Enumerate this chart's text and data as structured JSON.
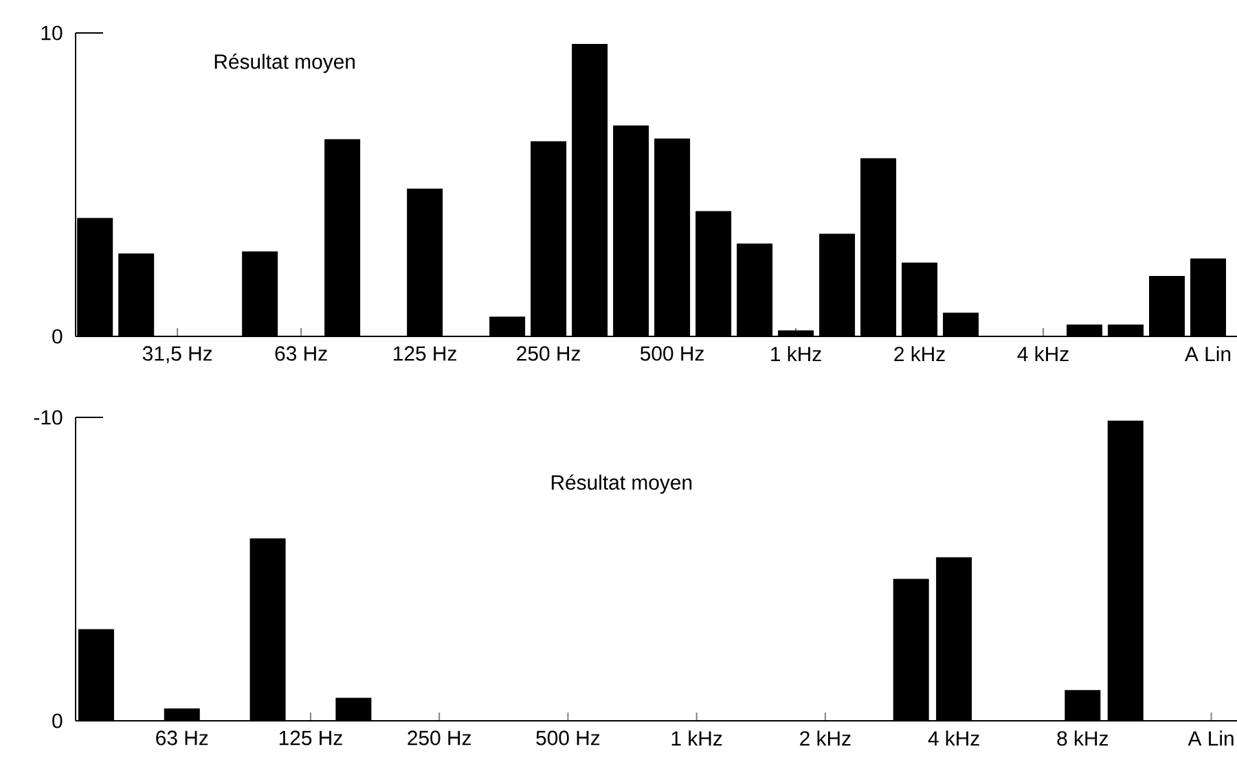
{
  "chart_data": [
    {
      "type": "bar",
      "categories": [
        null,
        null,
        "31,5 Hz",
        null,
        null,
        "63 Hz",
        null,
        null,
        "125 Hz",
        null,
        null,
        "250 Hz",
        null,
        null,
        "500 Hz",
        null,
        null,
        "1 kHz",
        null,
        null,
        "2 kHz",
        null,
        null,
        "4 kHz",
        null,
        null,
        null,
        "A Lin"
      ],
      "values": [
        3.9,
        2.73,
        0,
        0,
        2.8,
        0,
        6.5,
        0,
        4.87,
        0,
        0.65,
        6.43,
        9.64,
        6.95,
        6.52,
        4.13,
        3.06,
        0.2,
        3.38,
        5.87,
        2.43,
        0.78,
        0,
        0,
        0.39,
        0.39,
        1.99,
        2.57
      ],
      "color": "#000000",
      "ylim": [
        0,
        10
      ],
      "yticks": [
        0,
        10
      ],
      "annotations": [
        "Résultat moyen"
      ]
    },
    {
      "type": "bar",
      "categories": [
        null,
        null,
        "63 Hz",
        null,
        null,
        "125 Hz",
        null,
        null,
        "250 Hz",
        null,
        null,
        "500 Hz",
        null,
        null,
        "1 kHz",
        null,
        null,
        "2 kHz",
        null,
        null,
        "4 kHz",
        null,
        null,
        "8 kHz",
        null,
        null,
        "A Lin"
      ],
      "values": [
        -3.02,
        0,
        -0.41,
        0,
        -6.01,
        0,
        -0.76,
        0,
        0,
        0,
        0,
        0,
        0,
        0,
        0,
        0,
        0,
        0,
        0,
        -4.68,
        -5.39,
        0,
        0,
        -1.01,
        -9.89,
        0,
        0
      ],
      "color": "#000000",
      "ylim": [
        0,
        -10
      ],
      "yticks": [
        0,
        -10
      ],
      "annotations": [
        "Résultat moyen"
      ]
    }
  ]
}
